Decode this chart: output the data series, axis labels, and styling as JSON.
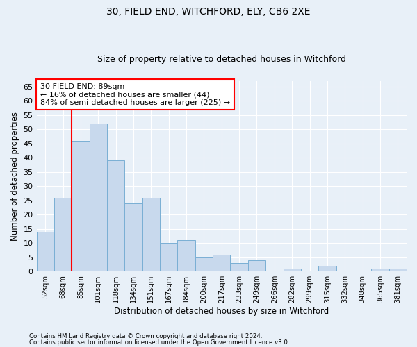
{
  "title1": "30, FIELD END, WITCHFORD, ELY, CB6 2XE",
  "title2": "Size of property relative to detached houses in Witchford",
  "xlabel": "Distribution of detached houses by size in Witchford",
  "ylabel": "Number of detached properties",
  "categories": [
    "52sqm",
    "68sqm",
    "85sqm",
    "101sqm",
    "118sqm",
    "134sqm",
    "151sqm",
    "167sqm",
    "184sqm",
    "200sqm",
    "217sqm",
    "233sqm",
    "249sqm",
    "266sqm",
    "282sqm",
    "299sqm",
    "315sqm",
    "332sqm",
    "348sqm",
    "365sqm",
    "381sqm"
  ],
  "values": [
    14,
    26,
    46,
    52,
    39,
    24,
    26,
    10,
    11,
    5,
    6,
    3,
    4,
    0,
    1,
    0,
    2,
    0,
    0,
    1,
    1
  ],
  "bar_color": "#c8d9ed",
  "bar_edge_color": "#7aafd4",
  "red_line_x": 1.5,
  "ylim": [
    0,
    67
  ],
  "yticks": [
    0,
    5,
    10,
    15,
    20,
    25,
    30,
    35,
    40,
    45,
    50,
    55,
    60,
    65
  ],
  "annotation_text": "30 FIELD END: 89sqm\n← 16% of detached houses are smaller (44)\n84% of semi-detached houses are larger (225) →",
  "annotation_box_color": "white",
  "annotation_box_edge_color": "red",
  "footer1": "Contains HM Land Registry data © Crown copyright and database right 2024.",
  "footer2": "Contains public sector information licensed under the Open Government Licence v3.0.",
  "background_color": "#e8f0f8",
  "plot_background": "#e8f0f8",
  "grid_color": "white",
  "title1_fontsize": 10,
  "title2_fontsize": 9,
  "xlabel_fontsize": 8.5,
  "ylabel_fontsize": 8.5
}
